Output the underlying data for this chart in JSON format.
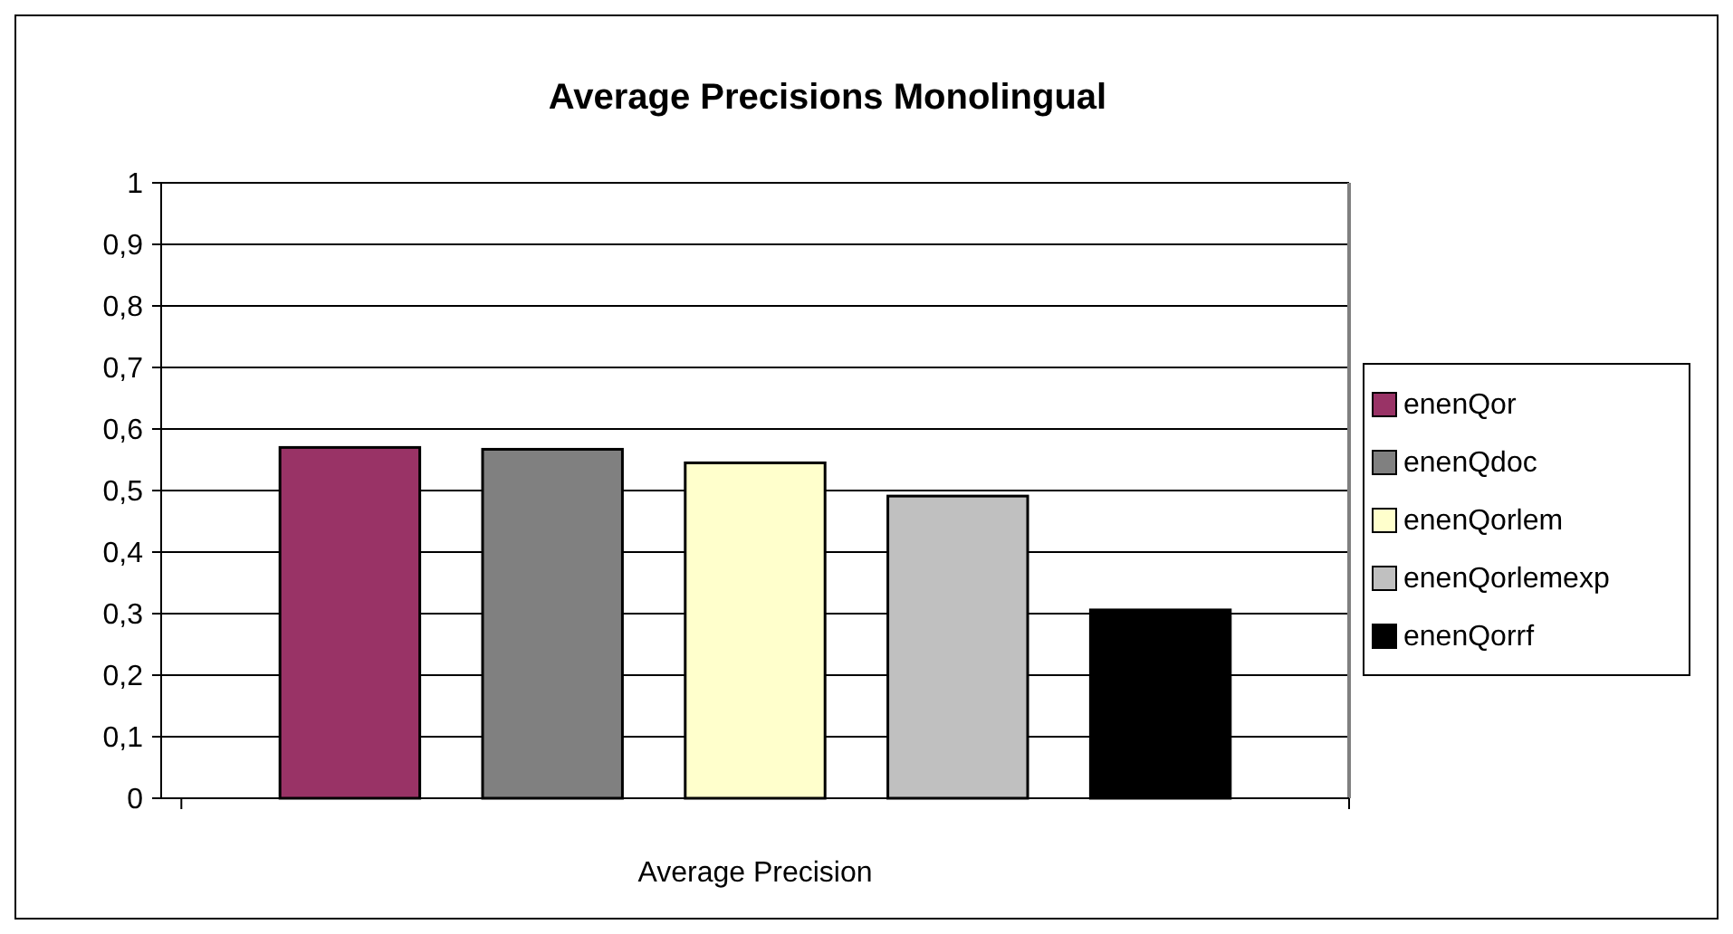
{
  "chart_data": {
    "type": "bar",
    "title": "Average Precisions Monolingual",
    "categories": [
      "Average Precision"
    ],
    "series": [
      {
        "name": "enenQor",
        "color": "#993366",
        "values": [
          0.57
        ]
      },
      {
        "name": "enenQdoc",
        "color": "#808080",
        "values": [
          0.567
        ]
      },
      {
        "name": "enenQorlem",
        "color": "#ffffcc",
        "values": [
          0.545
        ]
      },
      {
        "name": "enenQorlemexp",
        "color": "#c0c0c0",
        "values": [
          0.491
        ]
      },
      {
        "name": "enenQorrf",
        "color": "#000000",
        "values": [
          0.306
        ]
      }
    ],
    "ylim": [
      0,
      1
    ],
    "yticks": [
      0,
      {
        "value": 0.1,
        "label": "0,1"
      },
      {
        "value": 0.2,
        "label": "0,2"
      },
      {
        "value": 0.3,
        "label": "0,3"
      },
      {
        "value": 0.4,
        "label": "0,4"
      },
      {
        "value": 0.5,
        "label": "0,5"
      },
      {
        "value": 0.6,
        "label": "0,6"
      },
      {
        "value": 0.7,
        "label": "0,7"
      },
      {
        "value": 0.8,
        "label": "0,8"
      },
      {
        "value": 0.9,
        "label": "0,9"
      },
      1
    ],
    "grid": "y",
    "legend": "right"
  }
}
